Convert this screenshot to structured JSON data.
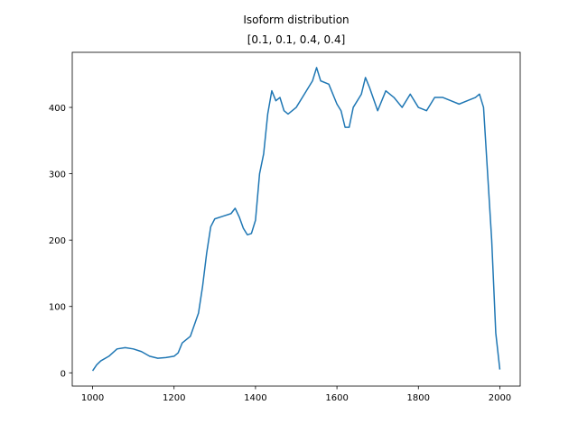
{
  "chart_data": {
    "type": "line",
    "title": "Isoform distribution",
    "subtitle": "[0.1, 0.1, 0.4, 0.4]",
    "x": [
      1000,
      1010,
      1020,
      1040,
      1060,
      1080,
      1100,
      1120,
      1140,
      1160,
      1180,
      1200,
      1210,
      1220,
      1240,
      1260,
      1270,
      1280,
      1290,
      1300,
      1320,
      1340,
      1350,
      1360,
      1370,
      1380,
      1390,
      1400,
      1410,
      1420,
      1430,
      1440,
      1450,
      1460,
      1470,
      1480,
      1500,
      1520,
      1540,
      1550,
      1560,
      1580,
      1600,
      1610,
      1620,
      1630,
      1640,
      1660,
      1670,
      1680,
      1700,
      1720,
      1740,
      1760,
      1780,
      1800,
      1820,
      1840,
      1860,
      1880,
      1900,
      1920,
      1940,
      1950,
      1960,
      1970,
      1980,
      1990,
      2000
    ],
    "series": [
      {
        "color": "#1f77b4",
        "values": [
          3,
          12,
          18,
          25,
          36,
          38,
          36,
          32,
          25,
          22,
          23,
          25,
          30,
          45,
          55,
          90,
          130,
          180,
          220,
          232,
          236,
          240,
          248,
          235,
          218,
          208,
          210,
          230,
          300,
          330,
          390,
          425,
          410,
          415,
          395,
          390,
          400,
          420,
          440,
          460,
          440,
          435,
          405,
          395,
          370,
          370,
          400,
          420,
          445,
          430,
          395,
          425,
          415,
          400,
          420,
          400,
          395,
          415,
          415,
          410,
          405,
          410,
          415,
          420,
          400,
          300,
          200,
          60,
          5
        ]
      }
    ],
    "xlim": [
      950,
      2050
    ],
    "xticks": [
      1000,
      1200,
      1400,
      1600,
      1800,
      2000
    ],
    "ylim": [
      -20,
      483
    ],
    "yticks": [
      0,
      100,
      200,
      300,
      400
    ],
    "grid": false
  }
}
